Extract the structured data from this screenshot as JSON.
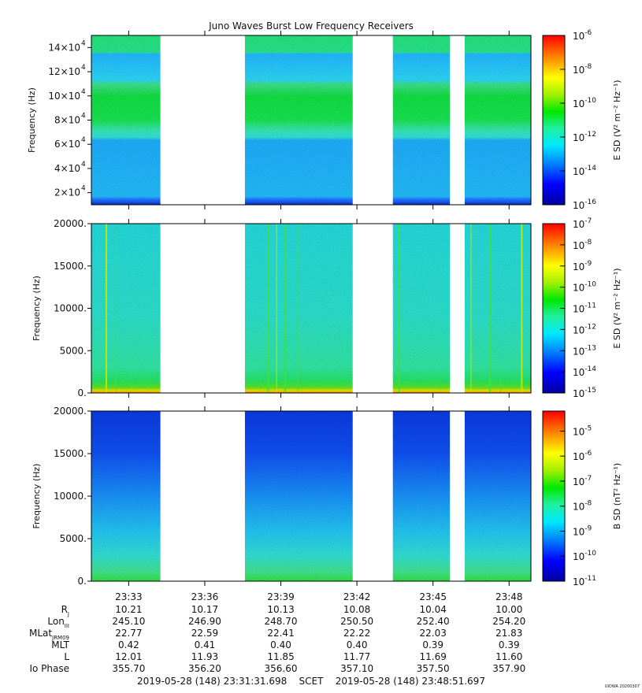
{
  "chart_data": {
    "type": "heatmap",
    "title": "Juno Waves Burst Low Frequency Receivers",
    "x_tick_labels": [
      "23:33",
      "23:36",
      "23:39",
      "23:42",
      "23:45",
      "23:48"
    ],
    "data_gaps": [
      [
        "23:34:15",
        "23:37:35"
      ],
      [
        "23:41:50",
        "23:43:25"
      ],
      [
        "23:45:40",
        "23:46:15"
      ]
    ],
    "panels": [
      {
        "ylabel": "Frequency (Hz)",
        "ylim": [
          10000,
          150000
        ],
        "y_ticks": [
          {
            "value": 20000,
            "mant": "2×10",
            "exp": "4"
          },
          {
            "value": 40000,
            "mant": "4×10",
            "exp": "4"
          },
          {
            "value": 60000,
            "mant": "6×10",
            "exp": "4"
          },
          {
            "value": 80000,
            "mant": "8×10",
            "exp": "4"
          },
          {
            "value": 100000,
            "mant": "10×10",
            "exp": "4"
          },
          {
            "value": 120000,
            "mant": "12×10",
            "exp": "4"
          },
          {
            "value": 140000,
            "mant": "14×10",
            "exp": "4"
          }
        ],
        "colorbar_label": "E SD (V² m⁻² Hz⁻¹)",
        "colorbar_log_range": [
          -16,
          -6
        ],
        "colorbar_exponents": [
          "-6",
          "-8",
          "-10",
          "-12",
          "-14",
          "-16"
        ],
        "colorscale": "log"
      },
      {
        "ylabel": "Frequency (Hz)",
        "ylim": [
          0,
          20000
        ],
        "y_ticks": [
          {
            "value": 0,
            "label": "0."
          },
          {
            "value": 5000,
            "label": "5000."
          },
          {
            "value": 10000,
            "label": "10000."
          },
          {
            "value": 15000,
            "label": "15000."
          },
          {
            "value": 20000,
            "label": "20000."
          }
        ],
        "colorbar_label": "E SD (V² m⁻² Hz⁻¹)",
        "colorbar_log_range": [
          -15,
          -7
        ],
        "colorbar_exponents": [
          "-7",
          "-8",
          "-9",
          "-10",
          "-11",
          "-12",
          "-13",
          "-14",
          "-15"
        ],
        "colorscale": "log"
      },
      {
        "ylabel": "Frequency (Hz)",
        "ylim": [
          0,
          20000
        ],
        "y_ticks": [
          {
            "value": 0,
            "label": "0."
          },
          {
            "value": 5000,
            "label": "5000."
          },
          {
            "value": 10000,
            "label": "10000."
          },
          {
            "value": 15000,
            "label": "15000."
          },
          {
            "value": 20000,
            "label": "20000."
          }
        ],
        "colorbar_label": "B SD (nT² Hz⁻¹)",
        "colorbar_log_range": [
          -11,
          -4.2
        ],
        "colorbar_exponents": [
          "-5",
          "-6",
          "-7",
          "-8",
          "-9",
          "-10",
          "-11"
        ],
        "colorscale": "log"
      }
    ],
    "ephemeris": [
      {
        "label": "R",
        "sub": "J",
        "values": [
          "10.21",
          "10.17",
          "10.13",
          "10.08",
          "10.04",
          "10.00"
        ]
      },
      {
        "label": "Lon",
        "sub": "III",
        "values": [
          "245.10",
          "246.90",
          "248.70",
          "250.50",
          "252.40",
          "254.20"
        ]
      },
      {
        "label": "MLat",
        "sub": "JRM09",
        "values": [
          "22.77",
          "22.59",
          "22.41",
          "22.22",
          "22.03",
          "21.83"
        ]
      },
      {
        "label": "MLT",
        "sub": "",
        "values": [
          "0.42",
          "0.41",
          "0.40",
          "0.40",
          "0.39",
          "0.39"
        ]
      },
      {
        "label": "L",
        "sub": "",
        "values": [
          "12.01",
          "11.93",
          "11.85",
          "11.77",
          "11.69",
          "11.60"
        ]
      },
      {
        "label": "Io Phase",
        "sub": "",
        "values": [
          "355.70",
          "356.20",
          "356.60",
          "357.10",
          "357.50",
          "357.90"
        ]
      }
    ],
    "time_range_text": "2019-05-28 (148) 23:31:31.698    SCET    2019-05-28 (148) 23:48:51.697",
    "stamp": "UIOWA 20200307"
  }
}
